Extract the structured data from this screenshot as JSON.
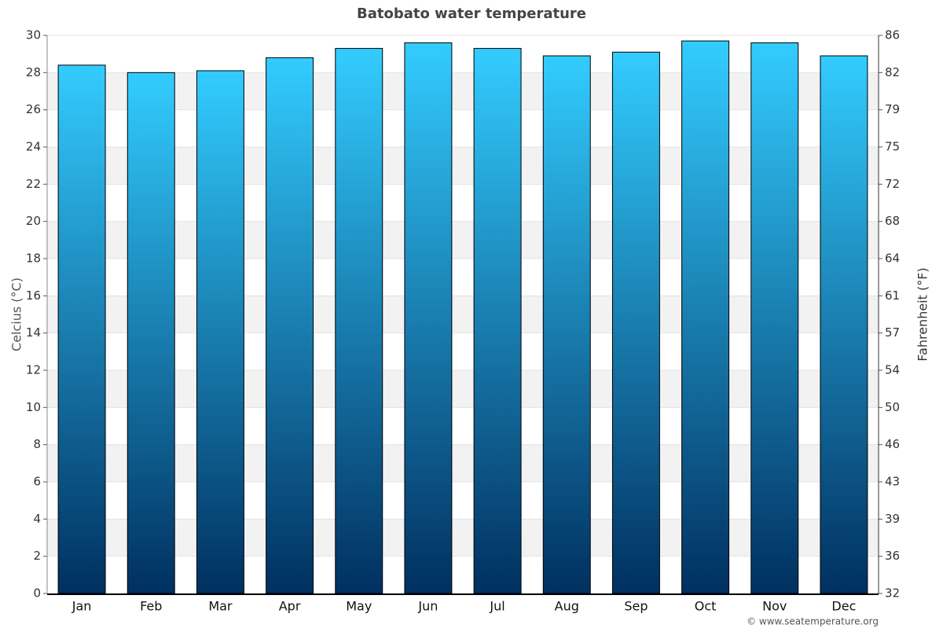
{
  "chart_data": {
    "type": "bar",
    "title": "Batobato water temperature",
    "y_label": "Celcius (°C)",
    "y2_label": "Fahrenheit (°F)",
    "categories": [
      "Jan",
      "Feb",
      "Mar",
      "Apr",
      "May",
      "Jun",
      "Jul",
      "Aug",
      "Sep",
      "Oct",
      "Nov",
      "Dec"
    ],
    "values": [
      28.4,
      28.0,
      28.1,
      28.8,
      29.3,
      29.6,
      29.3,
      28.9,
      29.1,
      29.7,
      29.6,
      28.9
    ],
    "color_top": "#33ccff",
    "color_bottom": "#003060",
    "ylim": [
      0,
      30
    ],
    "yticks": [
      0,
      2,
      4,
      6,
      8,
      10,
      12,
      14,
      16,
      18,
      20,
      22,
      24,
      26,
      28,
      30
    ],
    "y2lim": [
      32,
      86
    ],
    "y2ticks": [
      32,
      {
        "value": 35.6,
        "label": "36"
      },
      {
        "value": 39.2,
        "label": "39"
      },
      {
        "value": 42.8,
        "label": "43"
      },
      {
        "value": 46.4,
        "label": "46"
      },
      50,
      {
        "value": 53.6,
        "label": "54"
      },
      {
        "value": 57.2,
        "label": "57"
      },
      {
        "value": 60.8,
        "label": "61"
      },
      {
        "value": 64.4,
        "label": "64"
      },
      68,
      {
        "value": 71.6,
        "label": "72"
      },
      {
        "value": 75.2,
        "label": "75"
      },
      {
        "value": 78.8,
        "label": "79"
      },
      {
        "value": 82.4,
        "label": "82"
      },
      86
    ],
    "grid": true,
    "credit": "© www.seatemperature.org"
  }
}
